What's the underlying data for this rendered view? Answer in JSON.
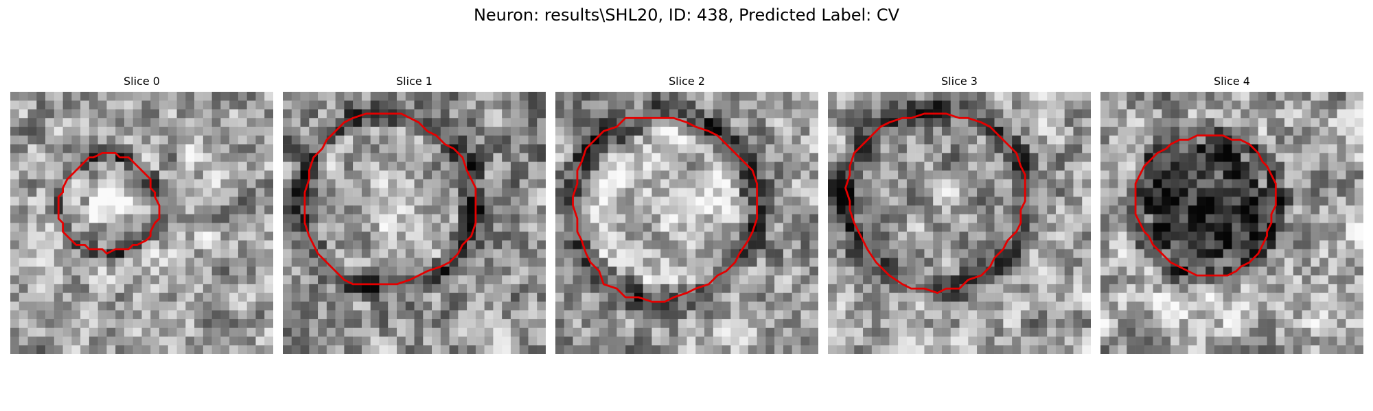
{
  "figure": {
    "title": "Neuron: results\\SHL20, ID: 438, Predicted Label: CV"
  },
  "panels": [
    {
      "title": "Slice 0",
      "seed": 11,
      "bg_mean": 0.63,
      "ring_level": 0.28,
      "interior_level": 0.62,
      "core_level": 0.92,
      "outline_color": "#e50000"
    },
    {
      "title": "Slice 1",
      "seed": 23,
      "bg_mean": 0.58,
      "ring_level": 0.22,
      "interior_level": 0.64,
      "core_level": 0.7,
      "outline_color": "#e50000"
    },
    {
      "title": "Slice 2",
      "seed": 37,
      "bg_mean": 0.6,
      "ring_level": 0.25,
      "interior_level": 0.72,
      "core_level": 0.74,
      "outline_color": "#e50000"
    },
    {
      "title": "Slice 3",
      "seed": 51,
      "bg_mean": 0.62,
      "ring_level": 0.22,
      "interior_level": 0.58,
      "core_level": 0.62,
      "outline_color": "#e50000"
    },
    {
      "title": "Slice 4",
      "seed": 67,
      "bg_mean": 0.66,
      "ring_level": 0.18,
      "interior_level": 0.22,
      "core_level": 0.28,
      "outline_color": "#e50000"
    }
  ]
}
